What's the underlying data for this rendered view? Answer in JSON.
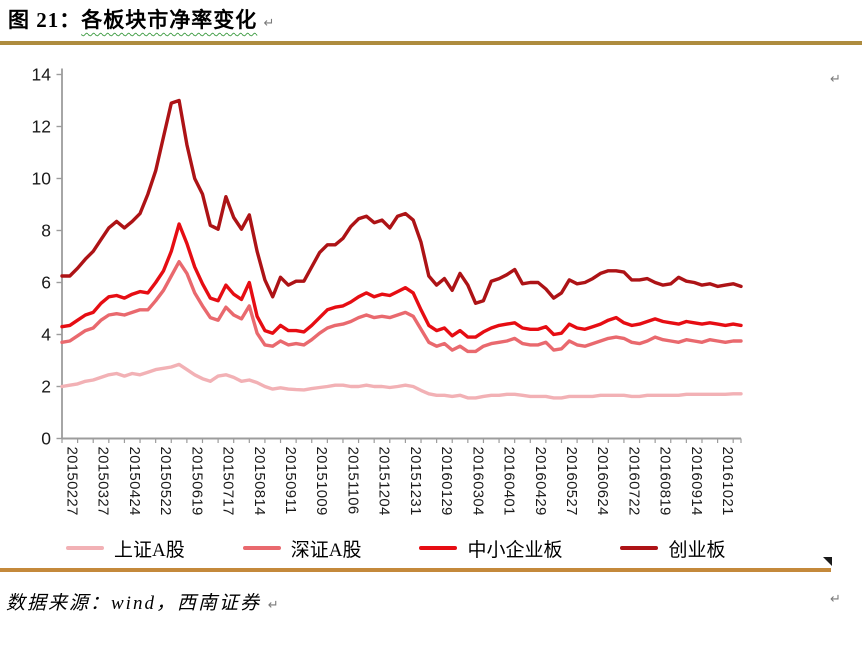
{
  "header": {
    "title_prefix": "图 21：",
    "title_main": "各板块市净率变化"
  },
  "footer": {
    "source_text": "数据来源：wind，西南证券"
  },
  "marks": {
    "return_mark": "↵"
  },
  "colors": {
    "rule_top": "#ae8c3e",
    "rule_bottom": "#c4893b",
    "axis": "#9c9c9c",
    "tick_label": "#1a1a1a",
    "wavy_underline": "#4aa24e"
  },
  "chart_data": {
    "type": "line",
    "title": "各板块市净率变化",
    "xlabel": "",
    "ylabel": "",
    "ylim": [
      0,
      14
    ],
    "y_ticks": [
      0,
      2,
      4,
      6,
      8,
      10,
      12,
      14
    ],
    "grid": false,
    "legend_position": "bottom",
    "n_points": 88,
    "x_label_every": 4,
    "x_tick_labels": [
      "20150227",
      "20150327",
      "20150424",
      "20150522",
      "20150619",
      "20150717",
      "20150814",
      "20150911",
      "20151009",
      "20151106",
      "20151204",
      "20151231",
      "20160129",
      "20160304",
      "20160401",
      "20160429",
      "20160527",
      "20160624",
      "20160722",
      "20160819",
      "20160914",
      "20161021"
    ],
    "series": [
      {
        "name": "上证A股",
        "key": "shanghai-a",
        "color": "#f2b1b5",
        "values": [
          2.0,
          2.05,
          2.1,
          2.2,
          2.25,
          2.35,
          2.45,
          2.5,
          2.4,
          2.5,
          2.45,
          2.55,
          2.65,
          2.7,
          2.75,
          2.85,
          2.65,
          2.45,
          2.3,
          2.2,
          2.4,
          2.45,
          2.35,
          2.2,
          2.25,
          2.15,
          2.0,
          1.9,
          1.95,
          1.9,
          1.88,
          1.87,
          1.92,
          1.96,
          2.0,
          2.05,
          2.05,
          2.0,
          2.0,
          2.05,
          2.0,
          2.0,
          1.96,
          2.0,
          2.05,
          2.0,
          1.85,
          1.72,
          1.66,
          1.66,
          1.62,
          1.66,
          1.56,
          1.56,
          1.62,
          1.66,
          1.66,
          1.7,
          1.7,
          1.66,
          1.62,
          1.62,
          1.62,
          1.56,
          1.56,
          1.62,
          1.62,
          1.62,
          1.62,
          1.66,
          1.66,
          1.66,
          1.66,
          1.62,
          1.62,
          1.66,
          1.66,
          1.66,
          1.66,
          1.66,
          1.7,
          1.7,
          1.7,
          1.7,
          1.7,
          1.7,
          1.72,
          1.72
        ]
      },
      {
        "name": "深证A股",
        "key": "shenzhen-a",
        "color": "#e9696e",
        "values": [
          3.7,
          3.75,
          3.95,
          4.15,
          4.25,
          4.55,
          4.75,
          4.8,
          4.75,
          4.85,
          4.95,
          4.95,
          5.3,
          5.7,
          6.25,
          6.8,
          6.35,
          5.6,
          5.1,
          4.65,
          4.55,
          5.05,
          4.75,
          4.6,
          5.1,
          4.05,
          3.6,
          3.55,
          3.75,
          3.6,
          3.65,
          3.6,
          3.8,
          4.05,
          4.25,
          4.35,
          4.4,
          4.5,
          4.65,
          4.75,
          4.65,
          4.7,
          4.65,
          4.75,
          4.85,
          4.7,
          4.2,
          3.7,
          3.55,
          3.65,
          3.4,
          3.55,
          3.35,
          3.35,
          3.55,
          3.65,
          3.7,
          3.75,
          3.85,
          3.65,
          3.6,
          3.6,
          3.7,
          3.4,
          3.45,
          3.75,
          3.6,
          3.55,
          3.65,
          3.75,
          3.85,
          3.9,
          3.85,
          3.7,
          3.65,
          3.75,
          3.9,
          3.8,
          3.75,
          3.7,
          3.8,
          3.75,
          3.7,
          3.8,
          3.75,
          3.7,
          3.75,
          3.75
        ]
      },
      {
        "name": "中小企业板",
        "key": "sme-board",
        "color": "#e60d13",
        "values": [
          4.3,
          4.35,
          4.55,
          4.75,
          4.85,
          5.2,
          5.45,
          5.5,
          5.4,
          5.55,
          5.65,
          5.6,
          6.0,
          6.45,
          7.2,
          8.25,
          7.5,
          6.6,
          5.95,
          5.4,
          5.3,
          5.9,
          5.55,
          5.35,
          6.0,
          4.7,
          4.15,
          4.05,
          4.35,
          4.15,
          4.15,
          4.1,
          4.35,
          4.65,
          4.95,
          5.05,
          5.1,
          5.25,
          5.45,
          5.6,
          5.45,
          5.55,
          5.5,
          5.65,
          5.8,
          5.6,
          4.95,
          4.35,
          4.15,
          4.25,
          3.95,
          4.15,
          3.9,
          3.9,
          4.1,
          4.25,
          4.35,
          4.4,
          4.45,
          4.25,
          4.2,
          4.2,
          4.3,
          4.0,
          4.05,
          4.4,
          4.25,
          4.2,
          4.3,
          4.4,
          4.55,
          4.65,
          4.45,
          4.35,
          4.4,
          4.5,
          4.6,
          4.5,
          4.45,
          4.4,
          4.5,
          4.45,
          4.4,
          4.45,
          4.4,
          4.35,
          4.4,
          4.35
        ]
      },
      {
        "name": "创业板",
        "key": "chinext",
        "color": "#ad1316",
        "values": [
          6.25,
          6.25,
          6.55,
          6.9,
          7.2,
          7.65,
          8.1,
          8.35,
          8.1,
          8.35,
          8.65,
          9.4,
          10.3,
          11.6,
          12.9,
          13.0,
          11.3,
          10.0,
          9.4,
          8.2,
          8.05,
          9.3,
          8.5,
          8.05,
          8.6,
          7.2,
          6.1,
          5.45,
          6.2,
          5.9,
          6.05,
          6.05,
          6.6,
          7.15,
          7.45,
          7.45,
          7.7,
          8.15,
          8.45,
          8.55,
          8.3,
          8.4,
          8.1,
          8.55,
          8.65,
          8.4,
          7.55,
          6.25,
          5.9,
          6.15,
          5.7,
          6.35,
          5.9,
          5.2,
          5.3,
          6.05,
          6.15,
          6.3,
          6.5,
          5.95,
          6.0,
          6.0,
          5.75,
          5.4,
          5.6,
          6.1,
          5.95,
          6.0,
          6.15,
          6.35,
          6.45,
          6.45,
          6.4,
          6.1,
          6.1,
          6.15,
          6.0,
          5.9,
          5.95,
          6.2,
          6.05,
          6.0,
          5.9,
          5.95,
          5.85,
          5.9,
          5.95,
          5.85
        ]
      }
    ]
  }
}
